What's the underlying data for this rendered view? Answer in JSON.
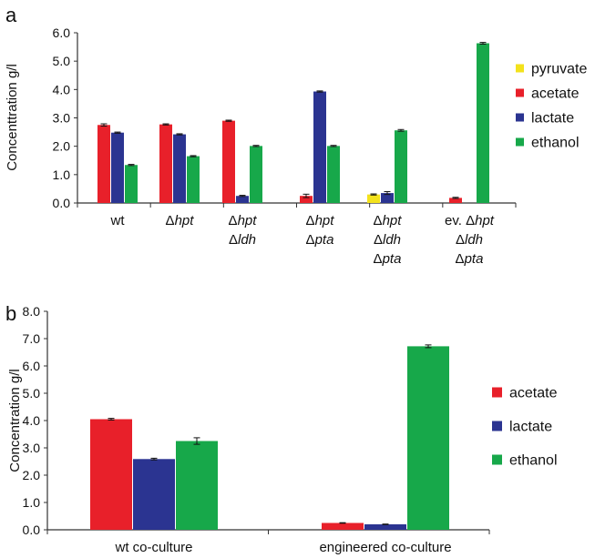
{
  "chart_data": [
    {
      "panel_label": "a",
      "type": "bar",
      "ylabel": "Concenttration g/l",
      "ylim": [
        0,
        6
      ],
      "yticks": [
        "0.0",
        "1.0",
        "2.0",
        "3.0",
        "4.0",
        "5.0",
        "6.0"
      ],
      "grid": false,
      "legend_position": "right",
      "category_lines": [
        [
          {
            "t": "wt",
            "i": false
          }
        ],
        [
          {
            "t": "Δ",
            "i": false
          },
          {
            "t": "hpt",
            "i": true
          }
        ],
        [
          {
            "t": "Δ",
            "i": false
          },
          {
            "t": "hpt",
            "i": true
          }
        ],
        [
          {
            "t": "Δ",
            "i": false
          },
          {
            "t": "ldh",
            "i": true
          }
        ],
        [
          {
            "t": "Δ",
            "i": false
          },
          {
            "t": "hpt",
            "i": true
          }
        ],
        [
          {
            "t": "Δ",
            "i": false
          },
          {
            "t": "pta",
            "i": true
          }
        ],
        [
          {
            "t": "Δ",
            "i": false
          },
          {
            "t": "hpt",
            "i": true
          }
        ],
        [
          {
            "t": "Δ",
            "i": false
          },
          {
            "t": "ldh",
            "i": true
          }
        ],
        [
          {
            "t": "Δ",
            "i": false
          },
          {
            "t": "pta",
            "i": true
          }
        ],
        [
          {
            "t": "ev. Δ",
            "i": false
          },
          {
            "t": "hpt",
            "i": true
          }
        ],
        [
          {
            "t": "Δ",
            "i": false
          },
          {
            "t": "ldh",
            "i": true
          }
        ],
        [
          {
            "t": "Δ",
            "i": false
          },
          {
            "t": "pta",
            "i": true
          }
        ]
      ],
      "category_line_map": [
        [
          0
        ],
        [
          1
        ],
        [
          2,
          3
        ],
        [
          4,
          5
        ],
        [
          6,
          7,
          8
        ],
        [
          9,
          10,
          11
        ]
      ],
      "series": [
        {
          "name": "pyruvate",
          "color": "#f3e21c",
          "values": [
            null,
            null,
            null,
            null,
            0.3,
            null
          ],
          "errors": [
            0,
            0,
            0,
            0,
            0.02,
            0
          ]
        },
        {
          "name": "acetate",
          "color": "#e8202a",
          "values": [
            2.75,
            2.77,
            2.9,
            0.25,
            null,
            0.18
          ],
          "errors": [
            0.04,
            0.02,
            0.02,
            0.06,
            0,
            0.02
          ]
        },
        {
          "name": "lactate",
          "color": "#2b3491",
          "values": [
            2.48,
            2.42,
            0.25,
            3.93,
            0.35,
            null
          ],
          "errors": [
            0.02,
            0.02,
            0.02,
            0.02,
            0.05,
            0
          ]
        },
        {
          "name": "ethanol",
          "color": "#17a84a",
          "values": [
            1.34,
            1.65,
            2.01,
            2.01,
            2.56,
            5.63
          ],
          "errors": [
            0.02,
            0.02,
            0.02,
            0.02,
            0.03,
            0.03
          ]
        }
      ]
    },
    {
      "panel_label": "b",
      "type": "bar",
      "ylabel": "Concentration g/l",
      "ylim": [
        0,
        8
      ],
      "yticks": [
        "0.0",
        "1.0",
        "2.0",
        "3.0",
        "4.0",
        "5.0",
        "6.0",
        "7.0",
        "8.0"
      ],
      "grid": false,
      "legend_position": "right",
      "categories": [
        "wt co-culture",
        "engineered co-culture"
      ],
      "series": [
        {
          "name": "acetate",
          "color": "#e8202a",
          "values": [
            4.05,
            0.25
          ],
          "errors": [
            0.03,
            0.01
          ]
        },
        {
          "name": "lactate",
          "color": "#2b3491",
          "values": [
            2.59,
            0.2
          ],
          "errors": [
            0.03,
            0.01
          ]
        },
        {
          "name": "ethanol",
          "color": "#17a84a",
          "values": [
            3.25,
            6.72
          ],
          "errors": [
            0.12,
            0.05
          ]
        }
      ]
    }
  ]
}
